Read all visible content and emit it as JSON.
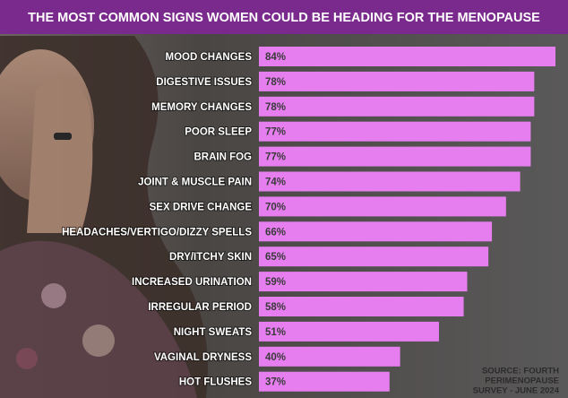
{
  "chart_data": {
    "type": "hbar",
    "title": "THE MOST COMMON SIGNS WOMEN COULD BE HEADING FOR THE MENOPAUSE",
    "categories": [
      "MOOD CHANGES",
      "DIGESTIVE ISSUES",
      "MEMORY CHANGES",
      "POOR SLEEP",
      "BRAIN FOG",
      "JOINT & MUSCLE PAIN",
      "SEX DRIVE CHANGE",
      "HEADACHES/VERTIGO/DIZZY SPELLS",
      "DRY/ITCHY SKIN",
      "INCREASED URINATION",
      "IRREGULAR PERIOD",
      "NIGHT SWEATS",
      "VAGINAL DRYNESS",
      "HOT FLUSHES"
    ],
    "values": [
      84,
      78,
      78,
      77,
      77,
      74,
      70,
      66,
      65,
      59,
      58,
      51,
      40,
      37
    ],
    "value_labels": [
      "84%",
      "78%",
      "78%",
      "77%",
      "77%",
      "74%",
      "70%",
      "66%",
      "65%",
      "59%",
      "58%",
      "51%",
      "40%",
      "37%"
    ],
    "color": "#e67ef0",
    "source": [
      "SOURCE: FOURTH",
      "PERIMENOPAUSE",
      "SURVEY - JUNE 2024"
    ]
  }
}
